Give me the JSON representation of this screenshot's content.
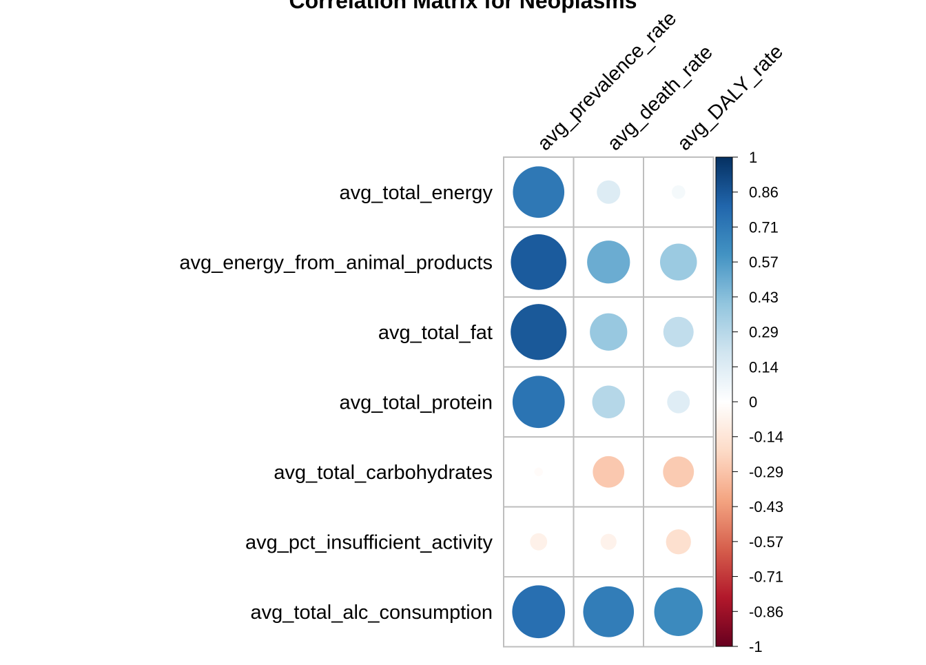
{
  "chart_data": {
    "type": "heatmap",
    "title": "Correlation Matrix for Neoplasms",
    "x": [
      "avg_prevalence_rate",
      "avg_death_rate",
      "avg_DALY_rate"
    ],
    "y": [
      "avg_total_energy",
      "avg_energy_from_animal_products",
      "avg_total_fat",
      "avg_total_protein",
      "avg_total_carbohydrates",
      "avg_pct_insufficient_activity",
      "avg_total_alc_consumption"
    ],
    "values": [
      [
        0.72,
        0.15,
        0.05
      ],
      [
        0.84,
        0.5,
        0.37
      ],
      [
        0.85,
        0.38,
        0.25
      ],
      [
        0.74,
        0.29,
        0.14
      ],
      [
        -0.02,
        -0.27,
        -0.26
      ],
      [
        -0.08,
        -0.07,
        -0.17
      ],
      [
        0.76,
        0.7,
        0.64
      ]
    ],
    "color_range": [
      -1,
      1
    ],
    "colorbar_ticks": [
      "1",
      "0.86",
      "0.71",
      "0.57",
      "0.43",
      "0.29",
      "0.14",
      "0",
      "-0.14",
      "-0.29",
      "-0.43",
      "-0.57",
      "-0.71",
      "-0.86",
      "-1"
    ],
    "colors": {
      "positive": "#053061",
      "negative": "#67001F",
      "neutral": "#FFFFFF",
      "grid": "#BEBEBE"
    },
    "legend": "right"
  }
}
